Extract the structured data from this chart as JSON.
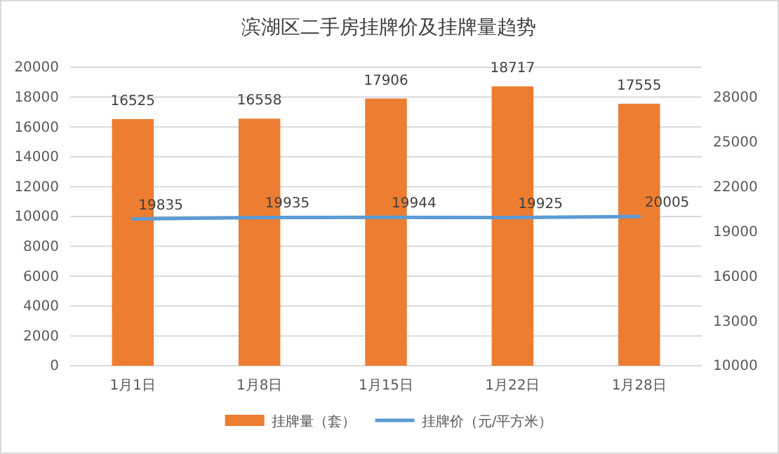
{
  "chart_data": {
    "type": "bar",
    "title": "滨湖区二手房挂牌价及挂牌量趋势",
    "categories": [
      "1月1日",
      "1月8日",
      "1月15日",
      "1月22日",
      "1月28日"
    ],
    "series": [
      {
        "name": "挂牌量（套）",
        "color": "#ed7d31",
        "values": [
          16525,
          16558,
          17906,
          18717,
          17555
        ]
      },
      {
        "name": "挂牌价（元/平方米）",
        "type": "line",
        "axis": "y2",
        "color": "#5b9bd5",
        "values": [
          19835,
          19935,
          19944,
          19925,
          20005
        ]
      }
    ],
    "ylim": [
      0,
      20000
    ],
    "yticks": [
      0,
      2000,
      4000,
      6000,
      8000,
      10000,
      12000,
      14000,
      16000,
      18000,
      20000
    ],
    "y2lim": [
      10000,
      30000
    ],
    "y2ticks": [
      10000,
      13000,
      16000,
      19000,
      22000,
      25000,
      28000
    ],
    "grid": "y",
    "legend": "bottom",
    "data_labels": true,
    "marker": "none",
    "line_style": "solid"
  }
}
